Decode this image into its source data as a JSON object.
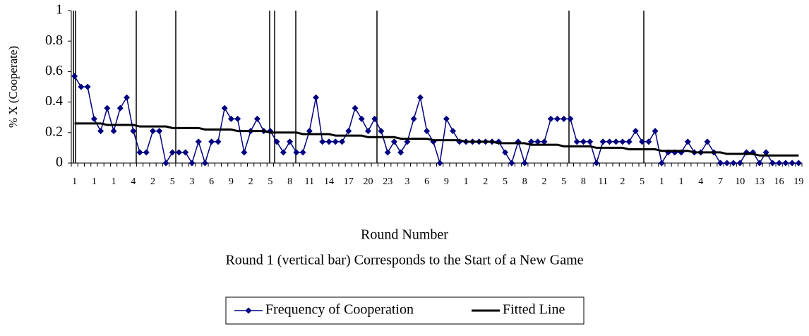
{
  "chart_data": {
    "type": "line",
    "y_label": "% X (Cooperate)",
    "x_label": "Round Number",
    "note": "Round 1 (vertical bar) Corresponds to the Start of a New Game",
    "categories": [
      "1",
      null,
      null,
      "1",
      null,
      null,
      "1",
      null,
      null,
      "4",
      null,
      null,
      "2",
      null,
      null,
      "5",
      null,
      null,
      "3",
      null,
      null,
      "6",
      null,
      null,
      "9",
      null,
      null,
      "2",
      null,
      null,
      "5",
      null,
      null,
      "8",
      null,
      null,
      "11",
      null,
      null,
      "14",
      null,
      null,
      "17",
      null,
      null,
      "20",
      null,
      null,
      "23",
      null,
      null,
      "3",
      null,
      null,
      "6",
      null,
      null,
      "9",
      null,
      null,
      "1",
      null,
      null,
      "2",
      null,
      null,
      "5",
      null,
      null,
      "8",
      null,
      null,
      "2",
      null,
      null,
      "5",
      null,
      null,
      "8",
      null,
      null,
      "11",
      null,
      null,
      "2",
      null,
      null,
      "5",
      null,
      null,
      "1",
      null,
      null,
      "1",
      null,
      null,
      "4",
      null,
      null,
      "7",
      null,
      null,
      "10",
      null,
      null,
      "13",
      null,
      null,
      "16",
      null,
      null,
      "19"
    ],
    "series": [
      {
        "name": "Frequency of Cooperation",
        "color": "#000080",
        "marker": "diamond",
        "values": [
          0.57,
          0.5,
          0.5,
          0.29,
          0.21,
          0.36,
          0.21,
          0.36,
          0.43,
          0.21,
          0.07,
          0.07,
          0.21,
          0.21,
          0,
          0.07,
          0.07,
          0.07,
          0,
          0.14,
          0,
          0.14,
          0.14,
          0.36,
          0.29,
          0.29,
          0.07,
          0.21,
          0.29,
          0.21,
          0.21,
          0.14,
          0.07,
          0.14,
          0.07,
          0.07,
          0.21,
          0.43,
          0.14,
          0.14,
          0.14,
          0.14,
          0.21,
          0.36,
          0.29,
          0.21,
          0.29,
          0.21,
          0.07,
          0.14,
          0.07,
          0.14,
          0.29,
          0.43,
          0.21,
          0.14,
          0,
          0.29,
          0.21,
          0.14,
          0.14,
          0.14,
          0.14,
          0.14,
          0.14,
          0.14,
          0.07,
          0,
          0.14,
          0,
          0.14,
          0.14,
          0.14,
          0.29,
          0.29,
          0.29,
          0.29,
          0.14,
          0.14,
          0.14,
          0,
          0.14,
          0.14,
          0.14,
          0.14,
          0.14,
          0.21,
          0.14,
          0.14,
          0.21,
          0,
          0.07,
          0.07,
          0.07,
          0.14,
          0.07,
          0.07,
          0.14,
          0.07,
          0,
          0,
          0,
          0,
          0.07,
          0.07,
          0,
          0.07,
          0,
          0,
          0,
          0,
          0
        ]
      },
      {
        "name": "Fitted Line",
        "color": "#000000",
        "values": [
          0.26,
          0.26,
          0.26,
          0.26,
          0.26,
          0.25,
          0.25,
          0.25,
          0.25,
          0.25,
          0.24,
          0.24,
          0.24,
          0.24,
          0.24,
          0.23,
          0.23,
          0.23,
          0.23,
          0.23,
          0.22,
          0.22,
          0.22,
          0.22,
          0.22,
          0.21,
          0.21,
          0.21,
          0.21,
          0.21,
          0.2,
          0.2,
          0.2,
          0.2,
          0.2,
          0.19,
          0.19,
          0.19,
          0.19,
          0.19,
          0.18,
          0.18,
          0.18,
          0.18,
          0.18,
          0.17,
          0.17,
          0.17,
          0.17,
          0.17,
          0.16,
          0.16,
          0.16,
          0.16,
          0.16,
          0.15,
          0.15,
          0.15,
          0.15,
          0.15,
          0.14,
          0.14,
          0.14,
          0.14,
          0.14,
          0.13,
          0.13,
          0.13,
          0.13,
          0.13,
          0.12,
          0.12,
          0.12,
          0.12,
          0.12,
          0.11,
          0.11,
          0.11,
          0.11,
          0.11,
          0.1,
          0.1,
          0.1,
          0.1,
          0.1,
          0.09,
          0.09,
          0.09,
          0.09,
          0.09,
          0.08,
          0.08,
          0.08,
          0.08,
          0.08,
          0.07,
          0.07,
          0.07,
          0.07,
          0.07,
          0.06,
          0.06,
          0.06,
          0.06,
          0.06,
          0.05,
          0.05,
          0.05,
          0.05,
          0.05,
          0.05,
          0.05
        ]
      }
    ],
    "ylim": [
      0,
      1
    ],
    "yticks": [
      0,
      0.2,
      0.4,
      0.6,
      0.8,
      1
    ],
    "grid": false,
    "legend": "bottom"
  }
}
